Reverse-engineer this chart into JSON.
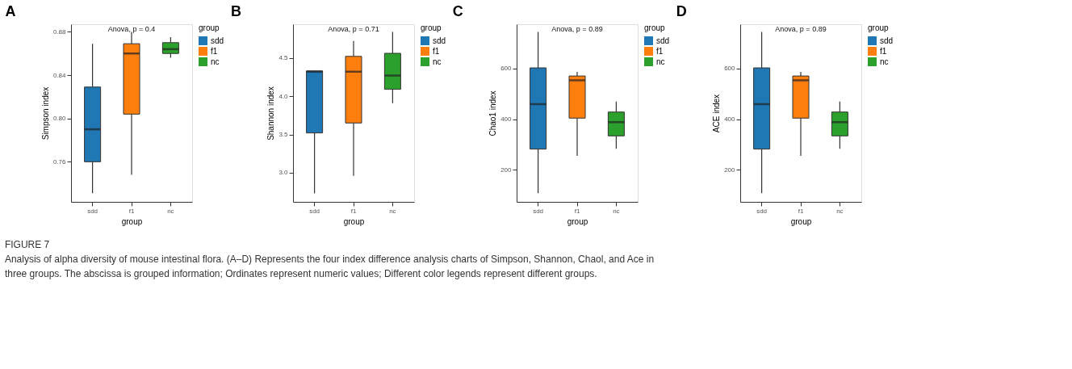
{
  "chart_data": [
    {
      "type": "box",
      "title": "A",
      "xlabel": "group",
      "ylabel": "Simpson index",
      "legend_title": "group",
      "legend": "right",
      "grid": false,
      "categories": [
        "sdd",
        "f1",
        "nc"
      ],
      "series": [
        {
          "name": "sdd",
          "color": "#1f77b4",
          "x": [
            "sdd"
          ],
          "boxes": [
            {
              "low": 0.731,
              "q1": 0.76,
              "median": 0.79,
              "q3": 0.829,
              "high": 0.869
            }
          ]
        },
        {
          "name": "f1",
          "color": "#ff7f0e",
          "x": [
            "f1"
          ],
          "boxes": [
            {
              "low": 0.748,
              "q1": 0.804,
              "median": 0.86,
              "q3": 0.869,
              "high": 0.88
            }
          ]
        },
        {
          "name": "nc",
          "color": "#2ca02c",
          "x": [
            "nc"
          ],
          "boxes": [
            {
              "low": 0.856,
              "q1": 0.86,
              "median": 0.864,
              "q3": 0.87,
              "high": 0.875
            }
          ]
        }
      ],
      "ylim": [
        0.723,
        0.887
      ],
      "yticks": [
        0.76,
        {
          "value": 0.8,
          "label": "0.80"
        },
        0.84,
        0.88
      ],
      "annotations": [
        "Anova, p = 0.4",
        "FIGURE 7",
        "Analysis of alpha diversity of mouse intestinal flora. (A–D) Represents the four index difference analysis charts of Simpson, Shannon, Chaol, and Ace in",
        "three groups. The abscissa is grouped information; Ordinates represent numeric values; Different color legends represent different groups."
      ]
    },
    {
      "type": "box",
      "title": "B",
      "xlabel": "group",
      "ylabel": "Shannon index",
      "legend_title": "group",
      "legend": "right",
      "grid": false,
      "categories": [
        "sdd",
        "f1",
        "nc"
      ],
      "series": [
        {
          "name": "sdd",
          "color": "#1f77b4",
          "x": [
            "sdd"
          ],
          "boxes": [
            {
              "low": 2.73,
              "q1": 3.52,
              "median": 4.32,
              "q3": 4.33,
              "high": 4.33
            }
          ]
        },
        {
          "name": "f1",
          "color": "#ff7f0e",
          "x": [
            "f1"
          ],
          "boxes": [
            {
              "low": 2.96,
              "q1": 3.65,
              "median": 4.32,
              "q3": 4.52,
              "high": 4.72
            }
          ]
        },
        {
          "name": "nc",
          "color": "#2ca02c",
          "x": [
            "nc"
          ],
          "boxes": [
            {
              "low": 3.91,
              "q1": 4.09,
              "median": 4.27,
              "q3": 4.56,
              "high": 4.84
            }
          ]
        }
      ],
      "ylim": [
        2.62,
        4.94
      ],
      "yticks": [
        {
          "value": 3,
          "label": "3.0"
        },
        3.5,
        {
          "value": 4,
          "label": "4.0"
        },
        4.5
      ],
      "annotations": [
        "Anova, p = 0.71"
      ]
    },
    {
      "type": "box",
      "title": "C",
      "xlabel": "group",
      "ylabel": "Chao1 index",
      "legend_title": "group",
      "legend": "right",
      "grid": false,
      "categories": [
        "sdd",
        "f1",
        "nc"
      ],
      "series": [
        {
          "name": "sdd",
          "color": "#1f77b4",
          "x": [
            "sdd"
          ],
          "boxes": [
            {
              "low": 108,
              "q1": 282,
              "median": 459,
              "q3": 602,
              "high": 744
            }
          ]
        },
        {
          "name": "f1",
          "color": "#ff7f0e",
          "x": [
            "f1"
          ],
          "boxes": [
            {
              "low": 255,
              "q1": 404,
              "median": 553,
              "q3": 570,
              "high": 586
            }
          ]
        },
        {
          "name": "nc",
          "color": "#2ca02c",
          "x": [
            "nc"
          ],
          "boxes": [
            {
              "low": 283,
              "q1": 334,
              "median": 388,
              "q3": 428,
              "high": 469
            }
          ]
        }
      ],
      "ylim": [
        74,
        774
      ],
      "yticks": [
        200,
        400,
        600
      ],
      "annotations": [
        "Anova, p = 0.89"
      ]
    },
    {
      "type": "box",
      "title": "D",
      "xlabel": "group",
      "ylabel": "ACE index",
      "legend_title": "group",
      "legend": "right",
      "grid": false,
      "categories": [
        "sdd",
        "f1",
        "nc"
      ],
      "series": [
        {
          "name": "sdd",
          "color": "#1f77b4",
          "x": [
            "sdd"
          ],
          "boxes": [
            {
              "low": 108,
              "q1": 282,
              "median": 459,
              "q3": 602,
              "high": 744
            }
          ]
        },
        {
          "name": "f1",
          "color": "#ff7f0e",
          "x": [
            "f1"
          ],
          "boxes": [
            {
              "low": 255,
              "q1": 404,
              "median": 553,
              "q3": 570,
              "high": 586
            }
          ]
        },
        {
          "name": "nc",
          "color": "#2ca02c",
          "x": [
            "nc"
          ],
          "boxes": [
            {
              "low": 283,
              "q1": 334,
              "median": 388,
              "q3": 428,
              "high": 469
            }
          ]
        }
      ],
      "ylim": [
        74,
        774
      ],
      "yticks": [
        200,
        400,
        600
      ],
      "annotations": [
        "Anova, p = 0.89"
      ]
    }
  ]
}
